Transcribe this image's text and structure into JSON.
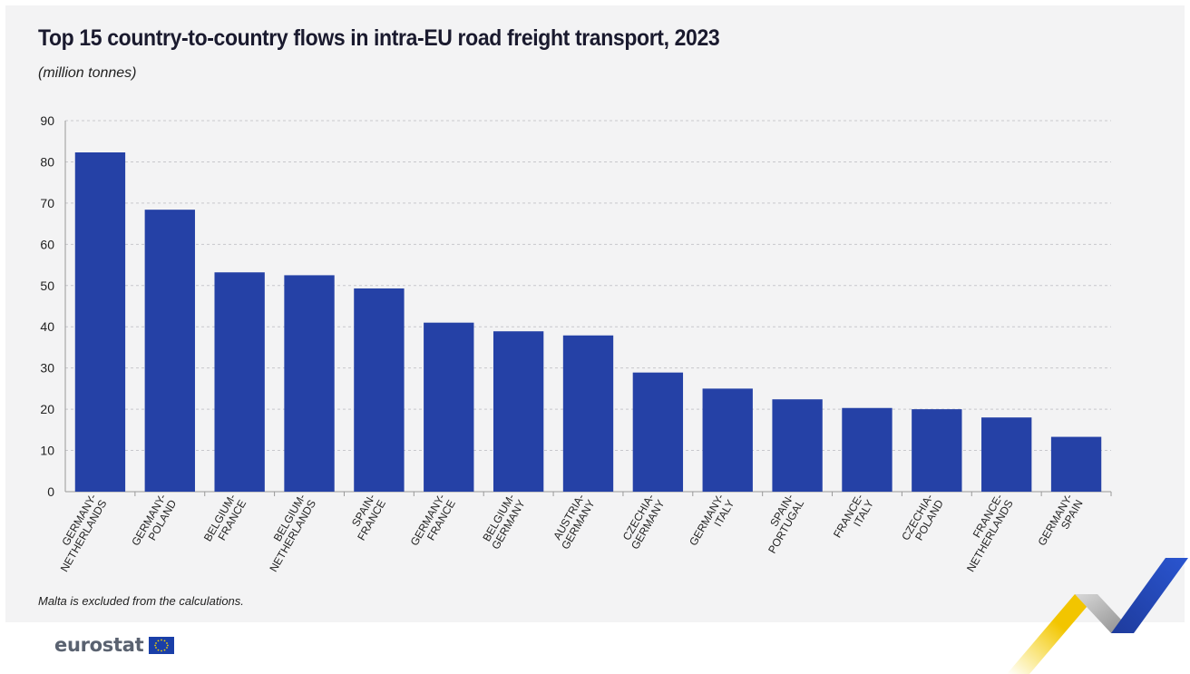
{
  "title": "Top 15 country-to-country flows in intra-EU road freight transport, 2023",
  "subtitle": "(million tonnes)",
  "note": "Malta is excluded from the calculations.",
  "logo": {
    "text": "eurostat",
    "flag_icon": "eu-flag-icon"
  },
  "colors": {
    "bar": "#2541a6",
    "grid": "#c8c8cc",
    "axis": "#999999",
    "panel": "#f3f3f4"
  },
  "chart_data": {
    "type": "bar",
    "categories": [
      "GERMANY-NETHERLANDS",
      "GERMANY-POLAND",
      "BELGIUM-FRANCE",
      "BELGIUM-NETHERLANDS",
      "SPAIN-FRANCE",
      "GERMANY-FRANCE",
      "BELGIUM-GERMANY",
      "AUSTRIA-GERMANY",
      "CZECHIA-GERMANY",
      "GERMANY-ITALY",
      "SPAIN-PORTUGAL",
      "FRANCE-ITALY",
      "CZECHIA-POLAND",
      "FRANCE-NETHERLANDS",
      "GERMANY-SPAIN"
    ],
    "category_lines": [
      [
        "GERMANY-",
        "NETHERLANDS"
      ],
      [
        "GERMANY-",
        "POLAND"
      ],
      [
        "BELGIUM-",
        "FRANCE"
      ],
      [
        "BELGIUM-",
        "NETHERLANDS"
      ],
      [
        "SPAIN-",
        "FRANCE"
      ],
      [
        "GERMANY-",
        "FRANCE"
      ],
      [
        "BELGIUM-",
        "GERMANY"
      ],
      [
        "AUSTRIA-",
        "GERMANY"
      ],
      [
        "CZECHIA-",
        "GERMANY"
      ],
      [
        "GERMANY-",
        "ITALY"
      ],
      [
        "SPAIN-",
        "PORTUGAL"
      ],
      [
        "FRANCE-",
        "ITALY"
      ],
      [
        "CZECHIA-",
        "POLAND"
      ],
      [
        "FRANCE-",
        "NETHERLANDS"
      ],
      [
        "GERMANY-",
        "SPAIN"
      ]
    ],
    "values": [
      82.3,
      68.4,
      53.2,
      52.5,
      49.3,
      41.0,
      38.9,
      37.9,
      28.9,
      25.0,
      22.4,
      20.3,
      20.0,
      18.0,
      13.3
    ],
    "ylim": [
      0,
      90
    ],
    "yticks": [
      0,
      10,
      20,
      30,
      40,
      50,
      60,
      70,
      80,
      90
    ],
    "grid": true,
    "xlabel": "",
    "ylabel": ""
  }
}
